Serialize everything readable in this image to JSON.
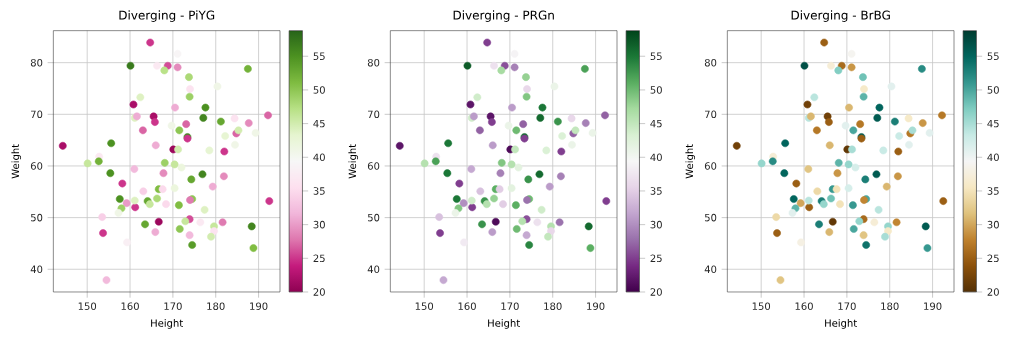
{
  "chart_data": [
    {
      "type": "scatter",
      "title": "Diverging - PiYG",
      "xlabel": "Height",
      "ylabel": "Weight",
      "x": [
        164.7,
        171.1,
        160.1,
        166.3,
        168.8,
        168.0,
        171.1,
        187.5,
        173.75,
        174.0,
        180.4,
        173.9,
        162.4,
        160.8,
        170.5,
        177.6,
        161.1,
        161.6,
        165.5,
        165.8,
        177.1,
        181.2,
        169.7,
        173.1,
        184.4,
        187.7,
        192.2,
        163.0,
        171.5,
        173.4,
        173.4,
        182.2,
        184.8,
        185.3,
        189.3,
        184.5,
        144.3,
        155.6,
        166.0,
        170.1,
        171.2,
        178.5,
        182.0,
        152.8,
        152.7,
        150.1,
        168.1,
        170.4,
        172.0,
        161.0,
        155.4,
        167.8,
        176.9,
        174.3,
        181.9,
        158.2,
        179.3,
        170.4,
        166.7,
        163.1,
        167.6,
        157.6,
        164.1,
        166.3,
        174.5,
        174.0,
        159.2,
        161.2,
        158.0,
        164.6,
        161.1,
        168.4,
        171.4,
        177.4,
        157.3,
        153.5,
        173.9,
        172.9,
        166.7,
        163.5,
        176.4,
        181.6,
        179.6,
        179.6,
        188.4,
        153.7,
        165.9,
        171.6,
        173.9,
        178.9,
        159.3,
        174.5,
        188.8,
        154.5,
        192.5
      ],
      "values": [
        83.9,
        81.7,
        79.4,
        79.4,
        79.4,
        78.5,
        79.1,
        78.8,
        77.2,
        74.9,
        75.4,
        73.4,
        73.3,
        71.9,
        71.3,
        71.3,
        69.3,
        69.6,
        69.6,
        68.5,
        69.3,
        68.6,
        67.8,
        68.1,
        69.2,
        68.3,
        69.8,
        66.9,
        66.9,
        65.6,
        65.3,
        65.8,
        66.3,
        66.9,
        66.4,
        64.1,
        63.9,
        64.4,
        64.0,
        63.2,
        63.2,
        63.0,
        62.8,
        61.8,
        60.9,
        60.5,
        60.6,
        60.3,
        59.7,
        59.4,
        58.6,
        58.6,
        58.4,
        57.4,
        58.0,
        56.6,
        56.0,
        55.7,
        55.5,
        55.1,
        55.5,
        53.6,
        53.2,
        53.7,
        53.6,
        53.4,
        52.8,
        52.0,
        51.8,
        52.6,
        53.3,
        52.6,
        52.4,
        51.5,
        50.9,
        50.1,
        49.7,
        49.3,
        49.2,
        48.7,
        49.1,
        49.1,
        48.3,
        47.4,
        48.3,
        47.0,
        47.2,
        47.8,
        46.6,
        46.3,
        45.2,
        44.7,
        44.1,
        37.9,
        53.2
      ],
      "cvalues": [
        25,
        39,
        57,
        37,
        26,
        47,
        29,
        52,
        48,
        36,
        41,
        49,
        44,
        22,
        31,
        55,
        44,
        31,
        22,
        25,
        56,
        53,
        41,
        27,
        36,
        29,
        27,
        27,
        50,
        56,
        25,
        43,
        27,
        45,
        41,
        41,
        22,
        55,
        31,
        21,
        45,
        43,
        25,
        37,
        52,
        46,
        49,
        46,
        42,
        32,
        55,
        29,
        56,
        53,
        29,
        25,
        31,
        42,
        51,
        34,
        35,
        55,
        53,
        48,
        50,
        28,
        30,
        25,
        49,
        46,
        44,
        35,
        51,
        44,
        41,
        34,
        26,
        46,
        21,
        53,
        37,
        28,
        46,
        36,
        56,
        25,
        31,
        50,
        32,
        45,
        38,
        54,
        51,
        32,
        25
      ],
      "xlim": [
        142.1,
        195
      ],
      "ylim": [
        35.6,
        86.2
      ],
      "xticks": [
        150,
        160,
        170,
        180,
        190
      ],
      "yticks": [
        40,
        50,
        60,
        70,
        80
      ],
      "clim": [
        20,
        58.8
      ],
      "cticks": [
        20,
        25,
        30,
        35,
        40,
        45,
        50,
        55
      ],
      "grid": true,
      "marker": "circle"
    },
    {
      "type": "scatter",
      "title": "Diverging - PRGn",
      "xlabel": "Height",
      "ylabel": "Weight",
      "x": [
        164.7,
        171.1,
        160.1,
        166.3,
        168.8,
        168.0,
        171.1,
        187.5,
        173.75,
        174.0,
        180.4,
        173.9,
        162.4,
        160.8,
        170.5,
        177.6,
        161.1,
        161.6,
        165.5,
        165.8,
        177.1,
        181.2,
        169.7,
        173.1,
        184.4,
        187.7,
        192.2,
        163.0,
        171.5,
        173.4,
        173.4,
        182.2,
        184.8,
        185.3,
        189.3,
        184.5,
        144.3,
        155.6,
        166.0,
        170.1,
        171.2,
        178.5,
        182.0,
        152.8,
        152.7,
        150.1,
        168.1,
        170.4,
        172.0,
        161.0,
        155.4,
        167.8,
        176.9,
        174.3,
        181.9,
        158.2,
        179.3,
        170.4,
        166.7,
        163.1,
        167.6,
        157.6,
        164.1,
        166.3,
        174.5,
        174.0,
        159.2,
        161.2,
        158.0,
        164.6,
        161.1,
        168.4,
        171.4,
        177.4,
        157.3,
        153.5,
        173.9,
        172.9,
        166.7,
        163.5,
        176.4,
        181.6,
        179.6,
        179.6,
        188.4,
        153.7,
        165.9,
        171.6,
        173.9,
        178.9,
        159.3,
        174.5,
        188.8,
        154.5,
        192.5
      ],
      "values": [
        83.9,
        81.7,
        79.4,
        79.4,
        79.4,
        78.5,
        79.1,
        78.8,
        77.2,
        74.9,
        75.4,
        73.4,
        73.3,
        71.9,
        71.3,
        71.3,
        69.3,
        69.6,
        69.6,
        68.5,
        69.3,
        68.6,
        67.8,
        68.1,
        69.2,
        68.3,
        69.8,
        66.9,
        66.9,
        65.6,
        65.3,
        65.8,
        66.3,
        66.9,
        66.4,
        64.1,
        63.9,
        64.4,
        64.0,
        63.2,
        63.2,
        63.0,
        62.8,
        61.8,
        60.9,
        60.5,
        60.6,
        60.3,
        59.7,
        59.4,
        58.6,
        58.6,
        58.4,
        57.4,
        58.0,
        56.6,
        56.0,
        55.7,
        55.5,
        55.1,
        55.5,
        53.6,
        53.2,
        53.7,
        53.6,
        53.4,
        52.8,
        52.0,
        51.8,
        52.6,
        53.3,
        52.6,
        52.4,
        51.5,
        50.9,
        50.1,
        49.7,
        49.3,
        49.2,
        48.7,
        49.1,
        49.1,
        48.3,
        47.4,
        48.3,
        47.0,
        47.2,
        47.8,
        46.6,
        46.3,
        45.2,
        44.7,
        44.1,
        37.9,
        53.2
      ],
      "cvalues": [
        25,
        39,
        57,
        37,
        26,
        47,
        29,
        52,
        48,
        36,
        41,
        49,
        44,
        22,
        31,
        55,
        44,
        31,
        22,
        25,
        56,
        53,
        41,
        27,
        36,
        29,
        27,
        27,
        50,
        56,
        25,
        43,
        27,
        45,
        41,
        41,
        22,
        55,
        31,
        21,
        45,
        43,
        25,
        37,
        52,
        46,
        49,
        46,
        42,
        32,
        55,
        29,
        56,
        53,
        29,
        25,
        31,
        42,
        51,
        34,
        35,
        55,
        53,
        48,
        50,
        28,
        30,
        25,
        49,
        46,
        44,
        35,
        51,
        44,
        41,
        34,
        26,
        46,
        21,
        53,
        37,
        28,
        46,
        36,
        56,
        25,
        31,
        50,
        32,
        45,
        38,
        54,
        51,
        32,
        25
      ],
      "xlim": [
        142.1,
        195
      ],
      "ylim": [
        35.6,
        86.2
      ],
      "xticks": [
        150,
        160,
        170,
        180,
        190
      ],
      "yticks": [
        40,
        50,
        60,
        70,
        80
      ],
      "clim": [
        20,
        58.8
      ],
      "cticks": [
        20,
        25,
        30,
        35,
        40,
        45,
        50,
        55
      ],
      "grid": true,
      "marker": "circle"
    },
    {
      "type": "scatter",
      "title": "Diverging - BrBG",
      "xlabel": "Height",
      "ylabel": "Weight",
      "x": [
        164.7,
        171.1,
        160.1,
        166.3,
        168.8,
        168.0,
        171.1,
        187.5,
        173.75,
        174.0,
        180.4,
        173.9,
        162.4,
        160.8,
        170.5,
        177.6,
        161.1,
        161.6,
        165.5,
        165.8,
        177.1,
        181.2,
        169.7,
        173.1,
        184.4,
        187.7,
        192.2,
        163.0,
        171.5,
        173.4,
        173.4,
        182.2,
        184.8,
        185.3,
        189.3,
        184.5,
        144.3,
        155.6,
        166.0,
        170.1,
        171.2,
        178.5,
        182.0,
        152.8,
        152.7,
        150.1,
        168.1,
        170.4,
        172.0,
        161.0,
        155.4,
        167.8,
        176.9,
        174.3,
        181.9,
        158.2,
        179.3,
        170.4,
        166.7,
        163.1,
        167.6,
        157.6,
        164.1,
        166.3,
        174.5,
        174.0,
        159.2,
        161.2,
        158.0,
        164.6,
        161.1,
        168.4,
        171.4,
        177.4,
        157.3,
        153.5,
        173.9,
        172.9,
        166.7,
        163.5,
        176.4,
        181.6,
        179.6,
        179.6,
        188.4,
        153.7,
        165.9,
        171.6,
        173.9,
        178.9,
        159.3,
        174.5,
        188.8,
        154.5,
        192.5
      ],
      "values": [
        83.9,
        81.7,
        79.4,
        79.4,
        79.4,
        78.5,
        79.1,
        78.8,
        77.2,
        74.9,
        75.4,
        73.4,
        73.3,
        71.9,
        71.3,
        71.3,
        69.3,
        69.6,
        69.6,
        68.5,
        69.3,
        68.6,
        67.8,
        68.1,
        69.2,
        68.3,
        69.8,
        66.9,
        66.9,
        65.6,
        65.3,
        65.8,
        66.3,
        66.9,
        66.4,
        64.1,
        63.9,
        64.4,
        64.0,
        63.2,
        63.2,
        63.0,
        62.8,
        61.8,
        60.9,
        60.5,
        60.6,
        60.3,
        59.7,
        59.4,
        58.6,
        58.6,
        58.4,
        57.4,
        58.0,
        56.6,
        56.0,
        55.7,
        55.5,
        55.1,
        55.5,
        53.6,
        53.2,
        53.7,
        53.6,
        53.4,
        52.8,
        52.0,
        51.8,
        52.6,
        53.3,
        52.6,
        52.4,
        51.5,
        50.9,
        50.1,
        49.7,
        49.3,
        49.2,
        48.7,
        49.1,
        49.1,
        48.3,
        47.4,
        48.3,
        47.0,
        47.2,
        47.8,
        46.6,
        46.3,
        45.2,
        44.7,
        44.1,
        37.9,
        53.2
      ],
      "cvalues": [
        25,
        39,
        57,
        37,
        26,
        47,
        29,
        52,
        48,
        36,
        41,
        49,
        44,
        22,
        31,
        55,
        44,
        31,
        22,
        25,
        56,
        53,
        41,
        27,
        36,
        29,
        27,
        27,
        50,
        56,
        25,
        43,
        27,
        45,
        41,
        41,
        22,
        55,
        31,
        21,
        45,
        43,
        25,
        37,
        52,
        46,
        49,
        46,
        42,
        32,
        55,
        29,
        56,
        53,
        29,
        25,
        31,
        42,
        51,
        34,
        35,
        55,
        53,
        48,
        50,
        28,
        30,
        25,
        49,
        46,
        44,
        35,
        51,
        44,
        41,
        34,
        26,
        46,
        21,
        53,
        37,
        28,
        46,
        36,
        56,
        25,
        31,
        50,
        32,
        45,
        38,
        54,
        51,
        32,
        25
      ],
      "xlim": [
        142.1,
        195
      ],
      "ylim": [
        35.6,
        86.2
      ],
      "xticks": [
        150,
        160,
        170,
        180,
        190
      ],
      "yticks": [
        40,
        50,
        60,
        70,
        80
      ],
      "clim": [
        20,
        58.8
      ],
      "cticks": [
        20,
        25,
        30,
        35,
        40,
        45,
        50,
        55
      ],
      "grid": true,
      "marker": "circle"
    }
  ]
}
